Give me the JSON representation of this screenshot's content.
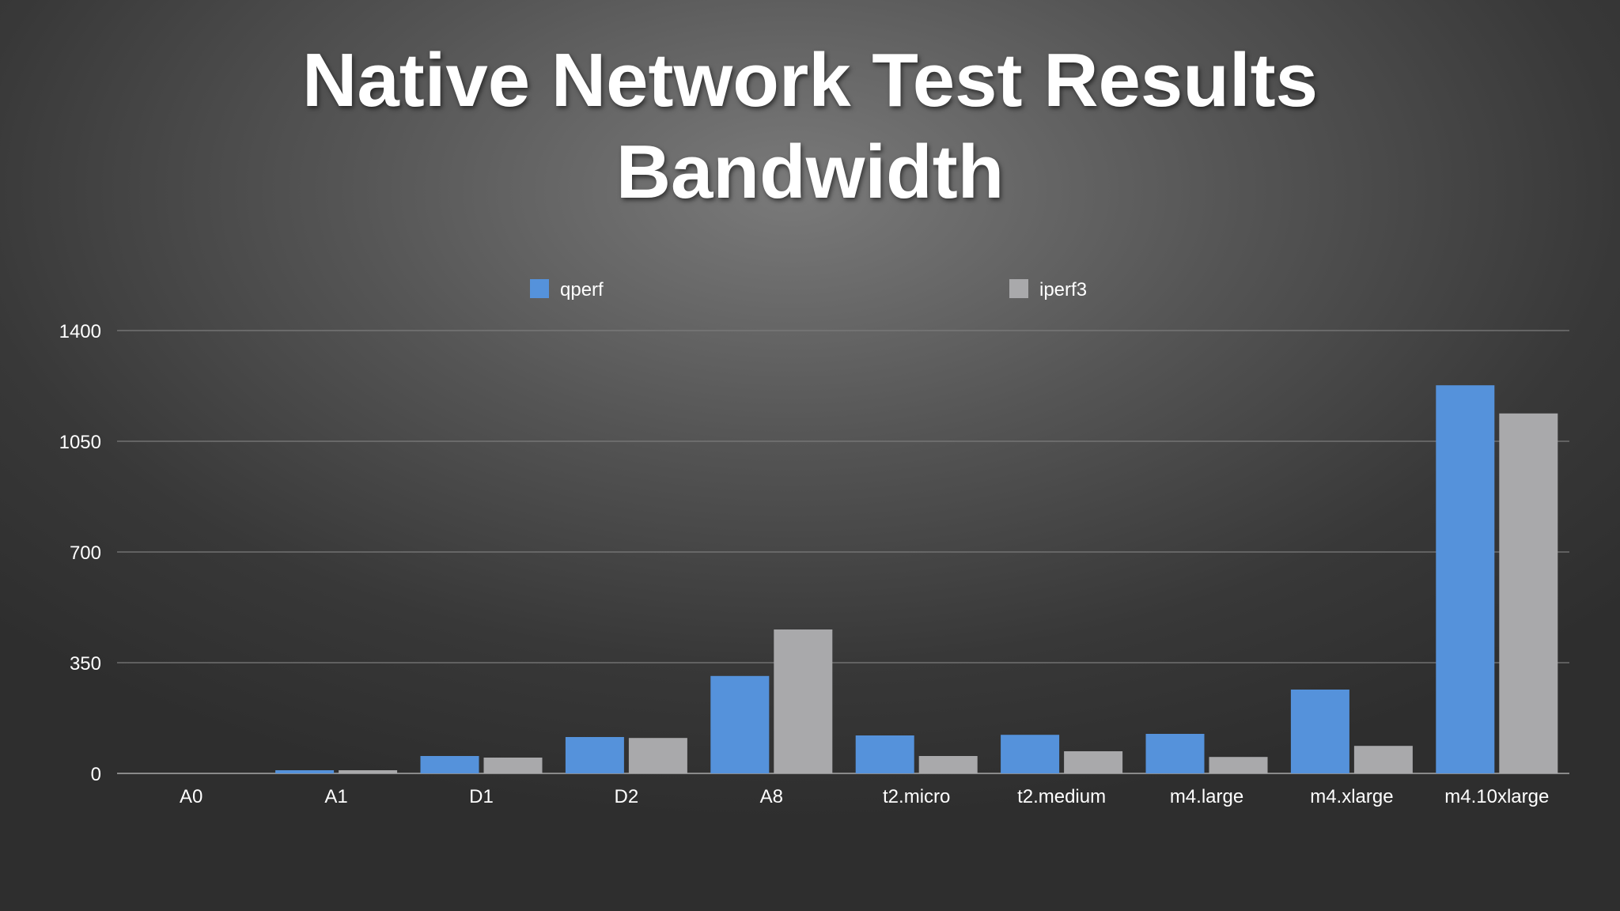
{
  "chart_data": {
    "type": "bar",
    "title": "Native Network Test Results",
    "subtitle": "Bandwidth",
    "xlabel": "",
    "ylabel": "",
    "categories": [
      "A0",
      "A1",
      "D1",
      "D2",
      "A8",
      "t2.micro",
      "t2.medium",
      "m4.large",
      "m4.xlarge",
      "m4.10xlarge"
    ],
    "series": [
      {
        "name": "qperf",
        "color": "#5592db",
        "values": [
          0,
          10,
          55,
          115,
          308,
          120,
          122,
          125,
          265,
          1227
        ]
      },
      {
        "name": "iperf3",
        "color": "#a9a9ab",
        "values": [
          0,
          10,
          50,
          112,
          455,
          55,
          70,
          52,
          87,
          1138
        ]
      }
    ],
    "yticks": [
      0,
      350,
      700,
      1050,
      1400
    ],
    "ylim": [
      0,
      1400
    ],
    "grid": true,
    "legend_position": "top"
  }
}
